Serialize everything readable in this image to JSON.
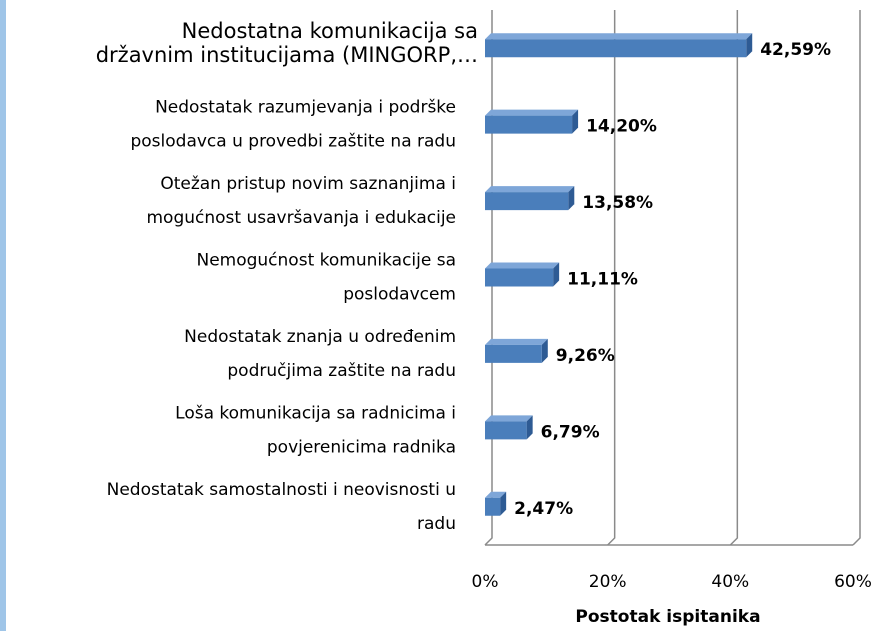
{
  "chart_data": {
    "type": "bar",
    "orientation": "horizontal",
    "categories": [
      [
        "Nedostatna komunikacija sa",
        "državnim institucijama (MINGORP,…"
      ],
      [
        "Nedostatak razumjevanja i podrške",
        "poslodavca u provedbi zaštite na radu"
      ],
      [
        "Otežan pristup novim saznanjima i",
        "mogućnost usavršavanja i edukacije"
      ],
      [
        "Nemogućnost komunikacije sa",
        "poslodavcem"
      ],
      [
        "Nedostatak znanja u određenim",
        "područjima zaštite na radu"
      ],
      [
        "Loša komunikacija sa radnicima i",
        "povjerenicima radnika"
      ],
      [
        "Nedostatak samostalnosti i neovisnosti u",
        "radu"
      ]
    ],
    "values": [
      42.59,
      14.2,
      13.58,
      11.11,
      9.26,
      6.79,
      2.47
    ],
    "value_labels": [
      "42,59%",
      "14,20%",
      "13,58%",
      "11,11%",
      "9,26%",
      "6,79%",
      "2,47%"
    ],
    "color": "#4a7ebb",
    "xlabel": "Postotak ispitanika",
    "xlim": [
      0,
      60
    ],
    "xticks": [
      {
        "value": 0,
        "label": "0%"
      },
      {
        "value": 20,
        "label": "20%"
      },
      {
        "value": 40,
        "label": "40%"
      },
      {
        "value": 60,
        "label": "60%"
      }
    ],
    "grid": true
  }
}
